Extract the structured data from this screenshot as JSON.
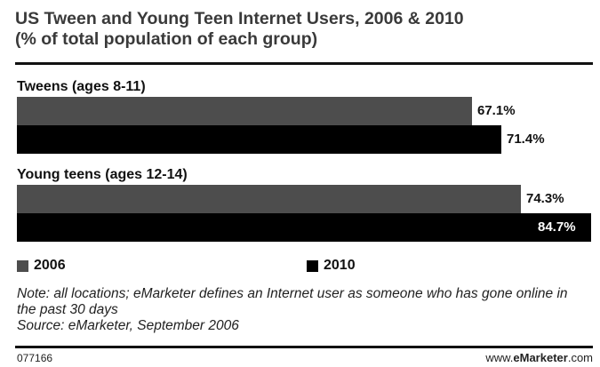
{
  "chart_data": {
    "type": "bar",
    "orientation": "horizontal",
    "title": "US Tween and Young Teen Internet Users, 2006 & 2010",
    "subtitle": "(% of total population of each group)",
    "categories": [
      "Tweens (ages 8-11)",
      "Young teens (ages 12-14)"
    ],
    "series": [
      {
        "name": "2006",
        "values": [
          67.1,
          74.3
        ],
        "labels": [
          "67.1%",
          "74.3%"
        ],
        "color": "#4d4d4d"
      },
      {
        "name": "2010",
        "values": [
          71.4,
          84.7
        ],
        "labels": [
          "71.4%",
          "84.7%"
        ],
        "color": "#000000"
      }
    ],
    "xlim": [
      0,
      84.7
    ],
    "grid": false,
    "legend": "bottom-left"
  },
  "note": "Note: all locations; eMarketer defines an Internet user as someone who has gone online in the past 30 days",
  "source": "Source: eMarketer, September 2006",
  "footer": {
    "chart_id": "077166",
    "site_prefix": "www.",
    "site_brand": "eMarketer",
    "site_suffix": ".com"
  }
}
